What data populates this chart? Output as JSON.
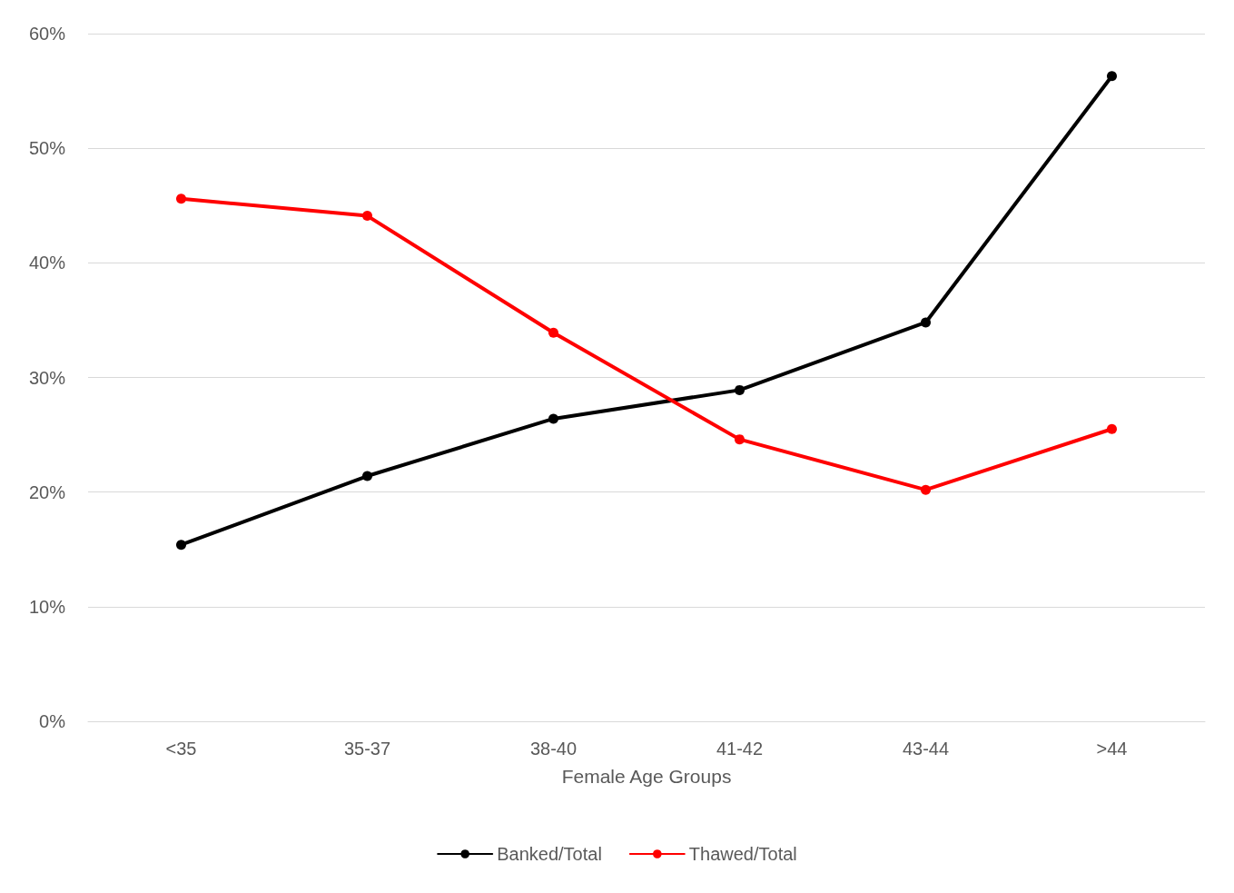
{
  "chart_data": {
    "type": "line",
    "xlabel": "Female Age Groups",
    "categories": [
      "<35",
      "35-37",
      "38-40",
      "41-42",
      "43-44",
      ">44"
    ],
    "series": [
      {
        "name": "Banked/Total",
        "color": "#000000",
        "values": [
          15.4,
          21.4,
          26.4,
          28.9,
          34.8,
          56.3
        ]
      },
      {
        "name": "Thawed/Total",
        "color": "#ff0000",
        "values": [
          45.6,
          44.1,
          33.9,
          24.6,
          20.2,
          25.5
        ]
      }
    ],
    "ylim": [
      0,
      60
    ],
    "yticks": [
      {
        "value": 0,
        "label": "0%"
      },
      {
        "value": 10,
        "label": "10%"
      },
      {
        "value": 20,
        "label": "20%"
      },
      {
        "value": 30,
        "label": "30%"
      },
      {
        "value": 40,
        "label": "40%"
      },
      {
        "value": 50,
        "label": "50%"
      },
      {
        "value": 60,
        "label": "60%"
      }
    ],
    "grid": "y",
    "legend": "bottom",
    "marker": "circle",
    "line_style": "solid"
  }
}
